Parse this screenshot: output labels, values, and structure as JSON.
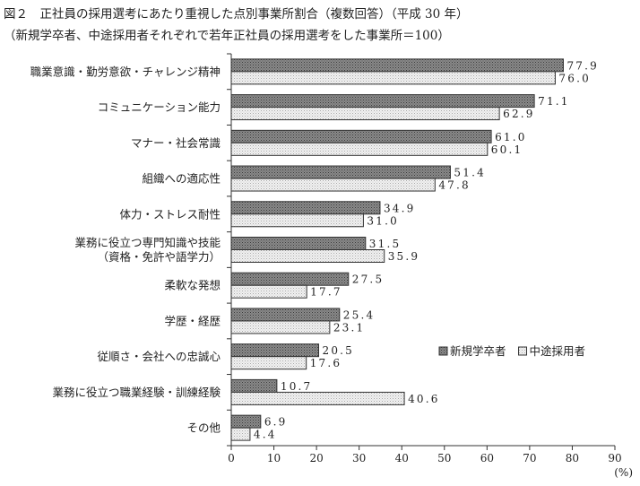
{
  "chart_data": {
    "type": "bar",
    "orientation": "horizontal",
    "title": "図２　正社員の採用選考にあたり重視した点別事業所割合（複数回答）（平成 30 年）",
    "subtitle": "（新規学卒者、中途採用者それぞれで若年正社員の採用選考をした事業所＝100）",
    "unit_label": "(%)",
    "xlim": [
      0,
      90
    ],
    "xticks": [
      0,
      10,
      20,
      30,
      40,
      50,
      60,
      70,
      80,
      90
    ],
    "categories": [
      [
        "職業意識・勤労意欲・チャレンジ精神"
      ],
      [
        "コミュニケーション能力"
      ],
      [
        "マナー・社会常識"
      ],
      [
        "組織への適応性"
      ],
      [
        "体力・ストレス耐性"
      ],
      [
        "業務に役立つ専門知識や技能",
        "（資格・免許や語学力）"
      ],
      [
        "柔軟な発想"
      ],
      [
        "学歴・経歴"
      ],
      [
        "従順さ・会社への忠誠心"
      ],
      [
        "業務に役立つ職業経験・訓練経験"
      ],
      [
        "その他"
      ]
    ],
    "series": [
      {
        "name": "新規学卒者",
        "color": "#7a7a7a",
        "values": [
          77.9,
          71.1,
          61.0,
          51.4,
          34.9,
          31.5,
          27.5,
          25.4,
          20.5,
          10.7,
          6.9
        ]
      },
      {
        "name": "中途採用者",
        "color": "#e6e6e6",
        "values": [
          76.0,
          62.9,
          60.1,
          47.8,
          31.0,
          35.9,
          17.7,
          23.1,
          17.6,
          40.6,
          4.4
        ]
      }
    ],
    "legend_position": "right"
  }
}
